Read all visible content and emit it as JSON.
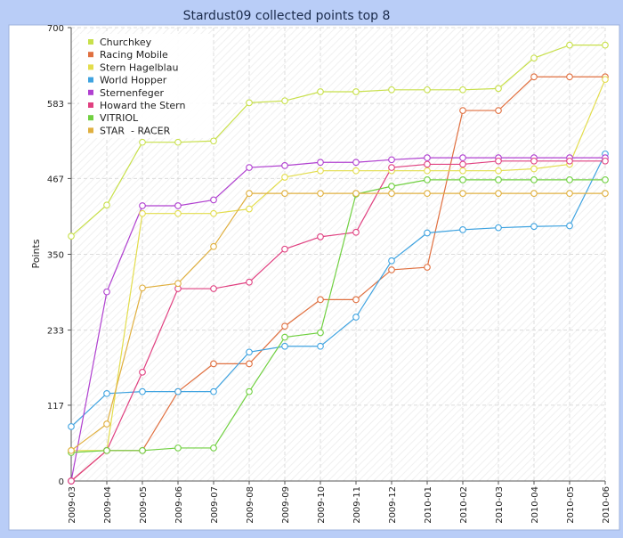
{
  "chart_data": {
    "type": "line",
    "title": "Stardust09 collected points top 8",
    "ylabel": "Points",
    "xlabel": "",
    "ylim": [
      0,
      700
    ],
    "yticks": [
      0,
      117,
      233,
      350,
      467,
      583,
      700
    ],
    "grid": true,
    "legend_position": "top-left",
    "categories": [
      "2009-03",
      "2009-04",
      "2009-05",
      "2009-06",
      "2009-07",
      "2009-08",
      "2009-09",
      "2009-10",
      "2009-11",
      "2009-12",
      "2010-01",
      "2010-02",
      "2010-03",
      "2010-04",
      "2010-05",
      "2010-06"
    ],
    "series": [
      {
        "name": "Churchkey",
        "color": "#c8e04b",
        "values": [
          378,
          426,
          523,
          523,
          525,
          584,
          587,
          601,
          601,
          604,
          604,
          604,
          606,
          653,
          673,
          673
        ]
      },
      {
        "name": "Racing Mobile",
        "color": "#e07040",
        "values": [
          0,
          47,
          47,
          138,
          181,
          181,
          239,
          280,
          280,
          326,
          330,
          572,
          572,
          624,
          624,
          624
        ]
      },
      {
        "name": "Stern Hagelblau",
        "color": "#e3dd4c",
        "values": [
          47,
          47,
          413,
          413,
          413,
          420,
          469,
          479,
          479,
          479,
          479,
          479,
          479,
          482,
          489,
          620
        ]
      },
      {
        "name": "World Hopper",
        "color": "#3fa3e0",
        "values": [
          84,
          135,
          138,
          138,
          138,
          199,
          208,
          208,
          253,
          340,
          383,
          388,
          391,
          393,
          394,
          505
        ]
      },
      {
        "name": "Sternenfeger",
        "color": "#b040d0",
        "values": [
          0,
          292,
          425,
          425,
          434,
          484,
          487,
          492,
          492,
          496,
          499,
          499,
          499,
          499,
          499,
          499
        ]
      },
      {
        "name": "Howard the Stern",
        "color": "#e04080",
        "values": [
          0,
          47,
          168,
          297,
          297,
          307,
          358,
          377,
          384,
          484,
          489,
          489,
          494,
          494,
          494,
          494
        ]
      },
      {
        "name": "VITRIOL",
        "color": "#70d040",
        "values": [
          44,
          47,
          47,
          51,
          51,
          138,
          222,
          229,
          443,
          455,
          465,
          465,
          465,
          465,
          465,
          465
        ]
      },
      {
        "name": "STAR  - RACER",
        "color": "#e0b040",
        "values": [
          47,
          88,
          298,
          305,
          362,
          444,
          444,
          444,
          444,
          444,
          444,
          444,
          444,
          444,
          444,
          444
        ]
      }
    ]
  }
}
